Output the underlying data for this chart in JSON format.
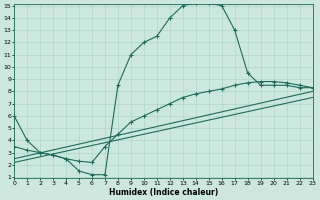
{
  "xlabel": "Humidex (Indice chaleur)",
  "bg_color": "#cce8de",
  "line_color": "#1a6b5a",
  "grid_color": "#aacfc4",
  "xlim": [
    0,
    23
  ],
  "ylim": [
    1,
    15
  ],
  "xticks": [
    0,
    1,
    2,
    3,
    4,
    5,
    6,
    7,
    8,
    9,
    10,
    11,
    12,
    13,
    14,
    15,
    16,
    17,
    18,
    19,
    20,
    21,
    22,
    23
  ],
  "yticks": [
    1,
    2,
    3,
    4,
    5,
    6,
    7,
    8,
    9,
    10,
    11,
    12,
    13,
    14,
    15
  ],
  "curve1_x": [
    0,
    1,
    2,
    3,
    4,
    5,
    6,
    7,
    8,
    9,
    10,
    11,
    12,
    13,
    14,
    15,
    16,
    17,
    18,
    19,
    20,
    21,
    22,
    23
  ],
  "curve1_y": [
    6,
    4,
    3,
    2.8,
    2.5,
    1.5,
    1.2,
    1.2,
    8.5,
    11,
    12,
    12.5,
    14,
    15,
    15.2,
    15.2,
    15,
    13,
    9.5,
    8.5,
    8.5,
    8.5,
    8.3,
    8.3
  ],
  "curve2_x": [
    0,
    1,
    2,
    3,
    4,
    5,
    6,
    7,
    8,
    9,
    10,
    11,
    12,
    13,
    14,
    15,
    16,
    17,
    18,
    19,
    20,
    21,
    22,
    23
  ],
  "curve2_y": [
    3.5,
    3.2,
    3.0,
    2.8,
    2.5,
    2.3,
    2.2,
    3.5,
    4.5,
    5.5,
    6.0,
    6.5,
    7.0,
    7.5,
    7.8,
    8.0,
    8.2,
    8.5,
    8.7,
    8.8,
    8.8,
    8.7,
    8.5,
    8.3
  ],
  "curve3_x": [
    0,
    23
  ],
  "curve3_y": [
    2.5,
    8.0
  ],
  "curve4_x": [
    0,
    23
  ],
  "curve4_y": [
    2.2,
    7.5
  ]
}
